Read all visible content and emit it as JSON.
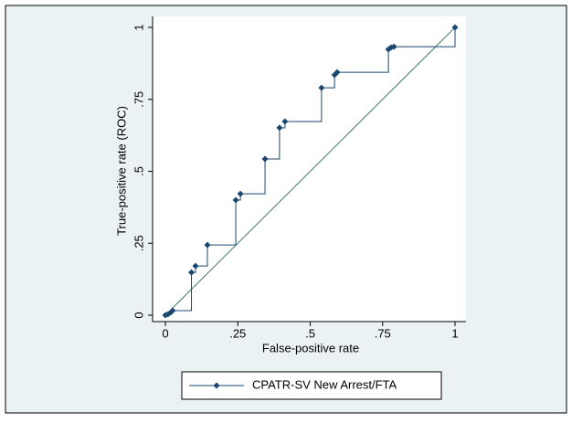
{
  "chart_data": {
    "type": "step-line",
    "xlabel": "False-positive rate",
    "ylabel": "True-positive rate (ROC)",
    "series": [
      {
        "name": "CPATR-SV New Arrest/FTA",
        "color": "#1a476f",
        "x": [
          0,
          0.009,
          0.019,
          0.025,
          0.09,
          0.104,
          0.145,
          0.243,
          0.259,
          0.344,
          0.394,
          0.413,
          0.539,
          0.584,
          0.593,
          0.77,
          0.779,
          0.789,
          1
        ],
        "values": [
          0,
          0.003,
          0.01,
          0.016,
          0.149,
          0.171,
          0.244,
          0.4,
          0.422,
          0.543,
          0.651,
          0.673,
          0.79,
          0.835,
          0.844,
          0.924,
          0.93,
          0.933,
          1
        ]
      }
    ],
    "reference_color": "#3d7a62",
    "xlim": [
      0,
      1
    ],
    "ylim": [
      0,
      1
    ],
    "xticks": [
      0,
      {
        "value": 0.25,
        "label": ".25"
      },
      {
        "value": 0.5,
        "label": ".5"
      },
      {
        "value": 0.75,
        "label": ".75"
      },
      1
    ],
    "yticks": [
      0,
      {
        "value": 0.25,
        "label": ".25"
      },
      {
        "value": 0.5,
        "label": ".5"
      },
      {
        "value": 0.75,
        "label": ".75"
      },
      1
    ]
  }
}
